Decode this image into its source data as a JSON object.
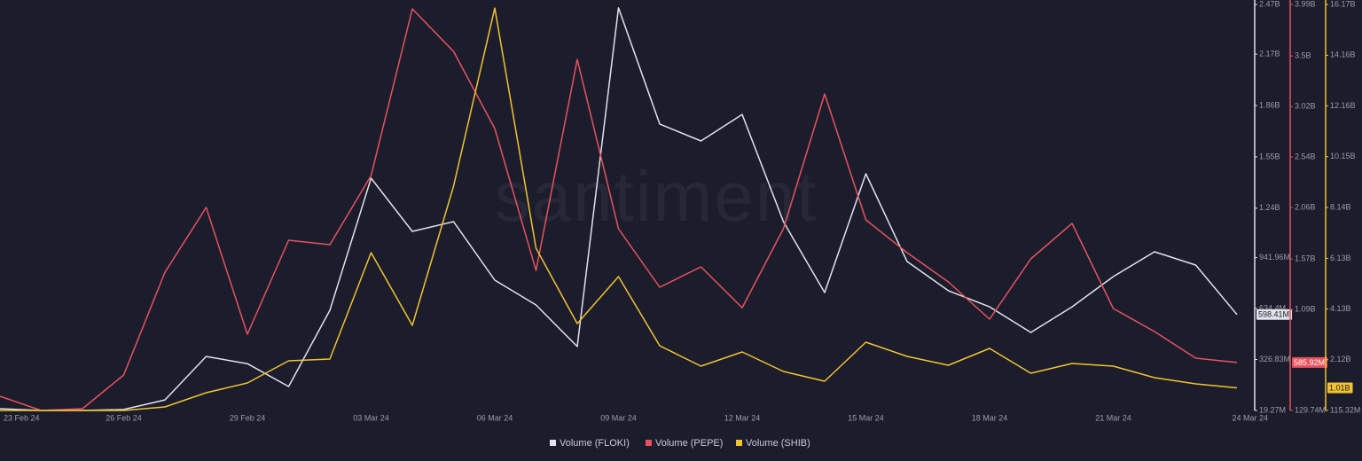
{
  "chart_data": {
    "type": "line",
    "watermark": "santiment",
    "categories": [
      "23 Feb 24",
      null,
      null,
      "26 Feb 24",
      null,
      null,
      "29 Feb 24",
      null,
      null,
      "03 Mar 24",
      null,
      null,
      "06 Mar 24",
      null,
      null,
      "09 Mar 24",
      null,
      null,
      "12 Mar 24",
      null,
      null,
      "15 Mar 24",
      null,
      null,
      "18 Mar 24",
      null,
      null,
      "21 Mar 24",
      null,
      null,
      "24 Mar 24"
    ],
    "series": [
      {
        "name": "Volume (FLOKI)",
        "color": "#e2e2ea",
        "values": [
          30,
          19.3,
          19.3,
          25,
          83,
          345,
          302,
          164,
          624,
          1421,
          1100,
          1159,
          806,
          656,
          405,
          2449,
          1748,
          1646,
          1806,
          1159,
          731,
          1448,
          918,
          742,
          645,
          490,
          645,
          827,
          977,
          897,
          598.41
        ],
        "value_labels": [
          null,
          null,
          null,
          null,
          null,
          null,
          null,
          null,
          null,
          null,
          null,
          null,
          null,
          null,
          null,
          null,
          null,
          null,
          null,
          null,
          null,
          null,
          null,
          null,
          null,
          null,
          null,
          null,
          null,
          null,
          "598.41M"
        ],
        "ylim": [
          19.27,
          2470
        ],
        "yticks": [
          {
            "value": 19.27,
            "label": "19.27M"
          },
          {
            "value": 326.83,
            "label": "326.83M"
          },
          {
            "value": 634.4,
            "label": "634.4M"
          },
          {
            "value": 941.96,
            "label": "941.96M"
          },
          {
            "value": 1240,
            "label": "1.24B"
          },
          {
            "value": 1550,
            "label": "1.55B"
          },
          {
            "value": 1860,
            "label": "1.86B"
          },
          {
            "value": 2170,
            "label": "2.17B"
          },
          {
            "value": 2470,
            "label": "2.47B"
          }
        ]
      },
      {
        "name": "Volume (PEPE)",
        "color": "#e8525e",
        "values": [
          265,
          130,
          147,
          467,
          1444,
          2060,
          855,
          1748,
          1706,
          2363,
          3948,
          3543,
          2810,
          1461,
          3467,
          1858,
          1301,
          1495,
          1107,
          1858,
          3139,
          1942,
          1630,
          1352,
          998,
          1571,
          1908,
          1099,
          880,
          627,
          585.92
        ],
        "value_labels": [
          null,
          null,
          null,
          null,
          null,
          null,
          null,
          null,
          null,
          null,
          null,
          null,
          null,
          null,
          null,
          null,
          null,
          null,
          null,
          null,
          null,
          null,
          null,
          null,
          null,
          null,
          null,
          null,
          null,
          null,
          "585.92M"
        ],
        "ylim": [
          129.74,
          3990
        ],
        "yticks": [
          {
            "value": 129.74,
            "label": "129.74M"
          },
          {
            "value": 1090,
            "label": "1.09B"
          },
          {
            "value": 1570,
            "label": "1.57B"
          },
          {
            "value": 2060,
            "label": "2.06B"
          },
          {
            "value": 2540,
            "label": "2.54B"
          },
          {
            "value": 3020,
            "label": "3.02B"
          },
          {
            "value": 3500,
            "label": "3.5B"
          },
          {
            "value": 3990,
            "label": "3.99B"
          }
        ]
      },
      {
        "name": "Volume (SHIB)",
        "color": "#f2c230",
        "values": [
          115.32,
          115.32,
          115.32,
          115.32,
          255,
          816,
          1202,
          2078,
          2148,
          6354,
          3480,
          8983,
          16028,
          6529,
          3550,
          5408,
          2674,
          1868,
          2429,
          1657,
          1272,
          2814,
          2253,
          1903,
          2569,
          1587,
          1973,
          1868,
          1412,
          1166,
          1010
        ],
        "value_labels": [
          null,
          null,
          null,
          null,
          null,
          null,
          null,
          null,
          null,
          null,
          null,
          null,
          null,
          null,
          null,
          null,
          null,
          null,
          null,
          null,
          null,
          null,
          null,
          null,
          null,
          null,
          null,
          null,
          null,
          null,
          "1.01B"
        ],
        "ylim": [
          115.32,
          16170
        ],
        "yticks": [
          {
            "value": 115.32,
            "label": "115.32M"
          },
          {
            "value": 2120,
            "label": "2.12B"
          },
          {
            "value": 4130,
            "label": "4.13B"
          },
          {
            "value": 6130,
            "label": "6.13B"
          },
          {
            "value": 8140,
            "label": "8.14B"
          },
          {
            "value": 10150,
            "label": "10.15B"
          },
          {
            "value": 12160,
            "label": "12.16B"
          },
          {
            "value": 14160,
            "label": "14.16B"
          },
          {
            "value": 16170,
            "label": "16.17B"
          }
        ]
      }
    ]
  }
}
